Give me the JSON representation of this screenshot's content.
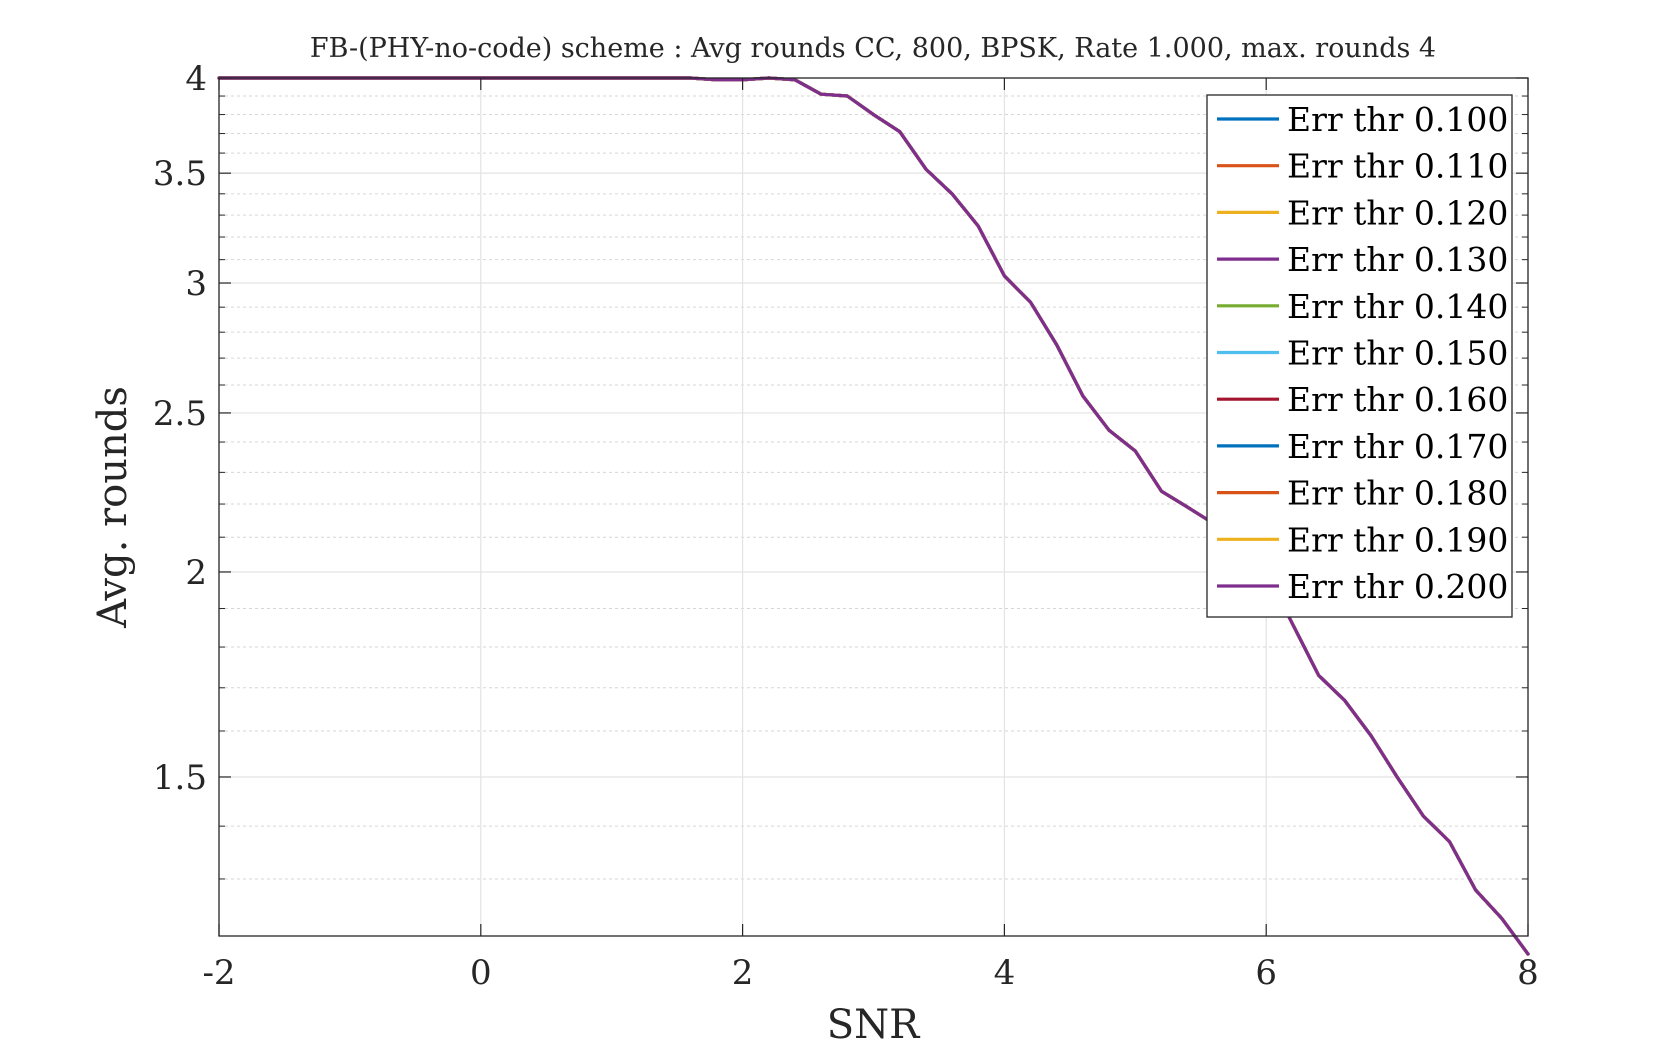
{
  "chart_data": {
    "type": "line",
    "title": "FB-(PHY-no-code) scheme : Avg rounds CC, 800, BPSK, Rate 1.000, max. rounds 4",
    "xlabel": "SNR",
    "ylabel": "Avg. rounds",
    "xlim": [
      -2,
      8
    ],
    "ylim": [
      1.2,
      4
    ],
    "yscale": "log",
    "grid": true,
    "legend_position": "top-right",
    "x_ticks": [
      "-2",
      "0",
      "2",
      "4",
      "6",
      "8"
    ],
    "y_ticks": [
      "1.5",
      "2",
      "2.5",
      "3",
      "3.5",
      "4"
    ],
    "x": [
      -2,
      -1.8,
      -1.6,
      -1.4,
      -1.2,
      -1,
      -0.8,
      -0.6,
      -0.4,
      -0.2,
      0,
      0.2,
      0.4,
      0.6,
      0.8,
      1,
      1.2,
      1.4,
      1.6,
      1.8,
      2,
      2.2,
      2.4,
      2.6,
      2.8,
      3,
      3.2,
      3.4,
      3.6,
      3.8,
      4,
      4.2,
      4.4,
      4.6,
      4.8,
      5,
      5.2,
      5.4,
      5.6,
      5.8,
      6,
      6.2,
      6.4,
      6.6,
      6.8,
      7,
      7.2,
      7.4,
      7.6,
      7.8,
      8
    ],
    "series": [
      {
        "name": "Err thr 0.100",
        "color": "#0072BD",
        "values": [
          4,
          4,
          4,
          4,
          4,
          4,
          4,
          4,
          4,
          4,
          4,
          4,
          4,
          4,
          4,
          4,
          4,
          4,
          4,
          3.99,
          3.99,
          4,
          3.99,
          3.91,
          3.9,
          3.8,
          3.71,
          3.52,
          3.4,
          3.25,
          3.03,
          2.92,
          2.75,
          2.56,
          2.44,
          2.37,
          2.24,
          2.19,
          2.14,
          2.08,
          2.0,
          1.86,
          1.73,
          1.67,
          1.59,
          1.5,
          1.42,
          1.37,
          1.28,
          1.23,
          1.17
        ]
      },
      {
        "name": "Err thr 0.110",
        "color": "#D95319",
        "values": [
          4,
          4,
          4,
          4,
          4,
          4,
          4,
          4,
          4,
          4,
          4,
          4,
          4,
          4,
          4,
          4,
          4,
          4,
          4,
          3.99,
          3.99,
          4,
          3.99,
          3.91,
          3.9,
          3.8,
          3.71,
          3.52,
          3.4,
          3.25,
          3.03,
          2.92,
          2.75,
          2.56,
          2.44,
          2.37,
          2.24,
          2.19,
          2.14,
          2.08,
          2.0,
          1.86,
          1.73,
          1.67,
          1.59,
          1.5,
          1.42,
          1.37,
          1.28,
          1.23,
          1.17
        ]
      },
      {
        "name": "Err thr 0.120",
        "color": "#EDB120",
        "values": [
          4,
          4,
          4,
          4,
          4,
          4,
          4,
          4,
          4,
          4,
          4,
          4,
          4,
          4,
          4,
          4,
          4,
          4,
          4,
          3.99,
          3.99,
          4,
          3.99,
          3.91,
          3.9,
          3.8,
          3.71,
          3.52,
          3.4,
          3.25,
          3.03,
          2.92,
          2.75,
          2.56,
          2.44,
          2.37,
          2.24,
          2.19,
          2.14,
          2.08,
          2.0,
          1.86,
          1.73,
          1.67,
          1.59,
          1.5,
          1.42,
          1.37,
          1.28,
          1.23,
          1.17
        ]
      },
      {
        "name": "Err thr 0.130",
        "color": "#7E2F8E",
        "values": [
          4,
          4,
          4,
          4,
          4,
          4,
          4,
          4,
          4,
          4,
          4,
          4,
          4,
          4,
          4,
          4,
          4,
          4,
          4,
          3.99,
          3.99,
          4,
          3.99,
          3.91,
          3.9,
          3.8,
          3.71,
          3.52,
          3.4,
          3.25,
          3.03,
          2.92,
          2.75,
          2.56,
          2.44,
          2.37,
          2.24,
          2.19,
          2.14,
          2.08,
          2.0,
          1.86,
          1.73,
          1.67,
          1.59,
          1.5,
          1.42,
          1.37,
          1.28,
          1.23,
          1.17
        ]
      },
      {
        "name": "Err thr 0.140",
        "color": "#77AC30",
        "values": [
          4,
          4,
          4,
          4,
          4,
          4,
          4,
          4,
          4,
          4,
          4,
          4,
          4,
          4,
          4,
          4,
          4,
          4,
          4,
          3.99,
          3.99,
          4,
          3.99,
          3.91,
          3.9,
          3.8,
          3.71,
          3.52,
          3.4,
          3.25,
          3.03,
          2.92,
          2.75,
          2.56,
          2.44,
          2.37,
          2.24,
          2.19,
          2.14,
          2.08,
          2.0,
          1.86,
          1.73,
          1.67,
          1.59,
          1.5,
          1.42,
          1.37,
          1.28,
          1.23,
          1.17
        ]
      },
      {
        "name": "Err thr 0.150",
        "color": "#4DBEEE",
        "values": [
          4,
          4,
          4,
          4,
          4,
          4,
          4,
          4,
          4,
          4,
          4,
          4,
          4,
          4,
          4,
          4,
          4,
          4,
          4,
          3.99,
          3.99,
          4,
          3.99,
          3.91,
          3.9,
          3.8,
          3.71,
          3.52,
          3.4,
          3.25,
          3.03,
          2.92,
          2.75,
          2.56,
          2.44,
          2.37,
          2.24,
          2.19,
          2.14,
          2.08,
          2.0,
          1.86,
          1.73,
          1.67,
          1.59,
          1.5,
          1.42,
          1.37,
          1.28,
          1.23,
          1.17
        ]
      },
      {
        "name": "Err thr 0.160",
        "color": "#A2142F",
        "values": [
          4,
          4,
          4,
          4,
          4,
          4,
          4,
          4,
          4,
          4,
          4,
          4,
          4,
          4,
          4,
          4,
          4,
          4,
          4,
          3.99,
          3.99,
          4,
          3.99,
          3.91,
          3.9,
          3.8,
          3.71,
          3.52,
          3.4,
          3.25,
          3.03,
          2.92,
          2.75,
          2.56,
          2.44,
          2.37,
          2.24,
          2.19,
          2.14,
          2.08,
          2.0,
          1.86,
          1.73,
          1.67,
          1.59,
          1.5,
          1.42,
          1.37,
          1.28,
          1.23,
          1.17
        ]
      },
      {
        "name": "Err thr 0.170",
        "color": "#0072BD",
        "values": [
          4,
          4,
          4,
          4,
          4,
          4,
          4,
          4,
          4,
          4,
          4,
          4,
          4,
          4,
          4,
          4,
          4,
          4,
          4,
          3.99,
          3.99,
          4,
          3.99,
          3.91,
          3.9,
          3.8,
          3.71,
          3.52,
          3.4,
          3.25,
          3.03,
          2.92,
          2.75,
          2.56,
          2.44,
          2.37,
          2.24,
          2.19,
          2.14,
          2.08,
          2.0,
          1.86,
          1.73,
          1.67,
          1.59,
          1.5,
          1.42,
          1.37,
          1.28,
          1.23,
          1.17
        ]
      },
      {
        "name": "Err thr 0.180",
        "color": "#D95319",
        "values": [
          4,
          4,
          4,
          4,
          4,
          4,
          4,
          4,
          4,
          4,
          4,
          4,
          4,
          4,
          4,
          4,
          4,
          4,
          4,
          3.99,
          3.99,
          4,
          3.99,
          3.91,
          3.9,
          3.8,
          3.71,
          3.52,
          3.4,
          3.25,
          3.03,
          2.92,
          2.75,
          2.56,
          2.44,
          2.37,
          2.24,
          2.19,
          2.14,
          2.08,
          2.0,
          1.86,
          1.73,
          1.67,
          1.59,
          1.5,
          1.42,
          1.37,
          1.28,
          1.23,
          1.17
        ]
      },
      {
        "name": "Err thr 0.190",
        "color": "#EDB120",
        "values": [
          4,
          4,
          4,
          4,
          4,
          4,
          4,
          4,
          4,
          4,
          4,
          4,
          4,
          4,
          4,
          4,
          4,
          4,
          4,
          3.99,
          3.99,
          4,
          3.99,
          3.91,
          3.9,
          3.8,
          3.71,
          3.52,
          3.4,
          3.25,
          3.03,
          2.92,
          2.75,
          2.56,
          2.44,
          2.37,
          2.24,
          2.19,
          2.14,
          2.08,
          2.0,
          1.86,
          1.73,
          1.67,
          1.59,
          1.5,
          1.42,
          1.37,
          1.28,
          1.23,
          1.17
        ]
      },
      {
        "name": "Err thr 0.200",
        "color": "#7E2F8E",
        "values": [
          4,
          4,
          4,
          4,
          4,
          4,
          4,
          4,
          4,
          4,
          4,
          4,
          4,
          4,
          4,
          4,
          4,
          4,
          4,
          3.99,
          3.99,
          4,
          3.99,
          3.91,
          3.9,
          3.8,
          3.71,
          3.52,
          3.4,
          3.25,
          3.03,
          2.92,
          2.75,
          2.56,
          2.44,
          2.37,
          2.24,
          2.19,
          2.14,
          2.08,
          2.0,
          1.86,
          1.73,
          1.67,
          1.59,
          1.5,
          1.42,
          1.37,
          1.28,
          1.23,
          1.17
        ]
      }
    ]
  }
}
